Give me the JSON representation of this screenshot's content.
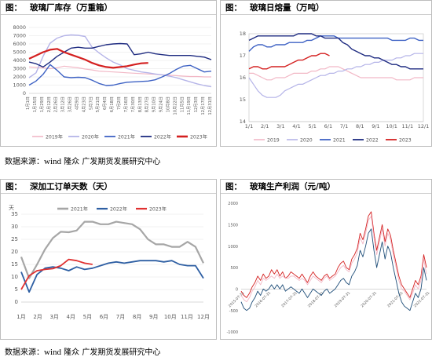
{
  "source": {
    "prefix": "数据来源：",
    "wind": "wind",
    "rest": " 隆众 广发期货发展研究中心"
  },
  "panels": {
    "p1": {
      "label": "图：",
      "title": "玻璃厂库存（万重箱）"
    },
    "p2": {
      "label": "图：",
      "title": "玻璃日熔量（万吨）"
    },
    "p3": {
      "label": "图：",
      "title": "深加工订单天数（天）"
    },
    "p4": {
      "label": "图：",
      "title": "玻璃生产利润（元/吨）"
    }
  },
  "chart_data": [
    {
      "id": "p1",
      "type": "line",
      "title": "玻璃厂库存（万重箱）",
      "ylim": [
        0,
        8000
      ],
      "y_ticks": [
        "0",
        "1000",
        "2000",
        "3000",
        "4000",
        "5000",
        "6000",
        "7000",
        "8000"
      ],
      "x_ticks": [
        "1月1日",
        "1月15日",
        "1月29日",
        "2月12日",
        "2月26日",
        "3月12日",
        "3月26日",
        "4月9日",
        "4月23日",
        "5月7日",
        "5月21日",
        "6月4日",
        "6月18日",
        "7月2日",
        "7月16日",
        "7月30日",
        "8月13日",
        "8月27日",
        "9月10日",
        "9月24日",
        "10月8日",
        "10月22日",
        "11月5日",
        "11月19日",
        "12月3日",
        "12月17日",
        "12月31日"
      ],
      "legend": "bottom",
      "series": [
        {
          "name": "2019年",
          "color": "#f2b8c6",
          "width": 1.2,
          "values": [
            3200,
            3150,
            3100,
            3000,
            3100,
            3300,
            3200,
            3100,
            2950,
            2850,
            2700,
            2650,
            2600,
            2550,
            2500,
            2450,
            2400,
            2350,
            2300,
            2250,
            2200,
            2150,
            2100,
            2050,
            2050,
            2000,
            2000
          ]
        },
        {
          "name": "2020年",
          "color": "#b5b4e8",
          "width": 1.4,
          "values": [
            1900,
            2500,
            4500,
            6100,
            6700,
            7000,
            7100,
            7050,
            6900,
            5600,
            4900,
            4300,
            3800,
            3450,
            3000,
            2800,
            2600,
            2500,
            2350,
            2250,
            2100,
            1900,
            1650,
            1400,
            1150,
            950,
            800
          ]
        },
        {
          "name": "2021年",
          "color": "#3e62c4",
          "width": 1.4,
          "values": [
            1000,
            1500,
            2300,
            3500,
            2800,
            2000,
            1900,
            1950,
            1900,
            1600,
            1200,
            950,
            1000,
            1200,
            1350,
            1400,
            1450,
            1500,
            1650,
            2000,
            2400,
            2900,
            3300,
            3400,
            3000,
            2600,
            2700
          ]
        },
        {
          "name": "2022年",
          "color": "#1e2b80",
          "width": 1.4,
          "values": [
            3800,
            3600,
            3200,
            3800,
            4500,
            5000,
            5500,
            5600,
            5500,
            5500,
            5700,
            5900,
            6000,
            6050,
            6000,
            4700,
            4800,
            5000,
            4800,
            4700,
            4600,
            4600,
            4600,
            4600,
            4500,
            4400,
            4100
          ]
        },
        {
          "name": "2023年",
          "color": "#d42020",
          "width": 2.2,
          "values": [
            4200,
            4600,
            5000,
            5300,
            5400,
            5000,
            4700,
            4400,
            4100,
            3700,
            3400,
            3200,
            3100,
            3200,
            3300,
            3500,
            3650,
            3700
          ]
        }
      ]
    },
    {
      "id": "p2",
      "type": "line",
      "title": "玻璃日熔量（万吨）",
      "ylim": [
        14,
        18
      ],
      "y_ticks": [
        "14",
        "15",
        "16",
        "17",
        "18"
      ],
      "x_ticks": [
        "1/1",
        "2/1",
        "3/1",
        "4/1",
        "5/1",
        "6/1",
        "7/1",
        "8/1",
        "9/1",
        "10/1",
        "11/1",
        "12/1"
      ],
      "legend": "bottom",
      "series": [
        {
          "name": "2019",
          "color": "#f2b8c6",
          "width": 1.2,
          "values": [
            16.2,
            16.2,
            16.1,
            16.0,
            15.9,
            15.9,
            16.0,
            16.0,
            16.0,
            16.1,
            16.2,
            16.2,
            16.2,
            16.2,
            16.3,
            16.3,
            16.4,
            16.4,
            16.5,
            16.5,
            16.5,
            16.4,
            16.3,
            16.2,
            16.1,
            16.0,
            16.0,
            16.0,
            16.0,
            16.0,
            16.0,
            16.0,
            16.0,
            15.9,
            15.9,
            15.9,
            15.9,
            16.0,
            16.0,
            16.0
          ]
        },
        {
          "name": "2020",
          "color": "#b5b4e8",
          "width": 1.2,
          "values": [
            16.0,
            15.7,
            15.4,
            15.2,
            15.1,
            15.1,
            15.1,
            15.2,
            15.4,
            15.5,
            15.6,
            15.7,
            15.7,
            15.8,
            15.9,
            16.0,
            16.1,
            16.1,
            16.2,
            16.2,
            16.3,
            16.3,
            16.4,
            16.4,
            16.5,
            16.5,
            16.6,
            16.6,
            16.7,
            16.7,
            16.8,
            16.8,
            16.8,
            16.9,
            16.9,
            17.0,
            17.0,
            17.1,
            17.1,
            17.1
          ]
        },
        {
          "name": "2021",
          "color": "#3e62c4",
          "width": 1.4,
          "values": [
            17.2,
            17.4,
            17.5,
            17.5,
            17.4,
            17.4,
            17.5,
            17.5,
            17.5,
            17.6,
            17.6,
            17.6,
            17.6,
            17.7,
            17.7,
            17.8,
            17.9,
            17.9,
            17.9,
            17.9,
            17.8,
            17.8,
            17.8,
            17.8,
            17.8,
            17.8,
            17.8,
            17.8,
            17.8,
            17.8,
            17.8,
            17.8,
            17.7,
            17.7,
            17.7,
            17.7,
            17.8,
            17.8,
            17.7,
            17.7
          ]
        },
        {
          "name": "2022",
          "color": "#1e2b80",
          "width": 1.4,
          "values": [
            17.7,
            17.8,
            17.9,
            17.9,
            17.9,
            17.9,
            17.9,
            17.9,
            17.9,
            17.9,
            17.9,
            18.0,
            18.0,
            18.0,
            18.0,
            17.9,
            17.9,
            17.8,
            17.8,
            17.8,
            17.8,
            17.6,
            17.5,
            17.3,
            17.2,
            17.1,
            17.0,
            17.0,
            16.9,
            16.9,
            16.8,
            16.7,
            16.6,
            16.6,
            16.5,
            16.5,
            16.4,
            16.4,
            16.4,
            16.4
          ]
        },
        {
          "name": "2023",
          "color": "#d42020",
          "width": 1.4,
          "values": [
            16.4,
            16.5,
            16.5,
            16.4,
            16.4,
            16.5,
            16.5,
            16.5,
            16.5,
            16.6,
            16.7,
            16.8,
            16.8,
            16.9,
            17.0,
            17.0,
            17.1,
            17.1,
            17.0
          ]
        }
      ]
    },
    {
      "id": "p3",
      "type": "line",
      "title": "深加工订单天数（天）",
      "ylabel": "天",
      "ylim": [
        0,
        35
      ],
      "y_ticks": [
        "0",
        "5",
        "10",
        "15",
        "20",
        "25",
        "30",
        "35"
      ],
      "x_ticks": [
        "1月",
        "2月",
        "3月",
        "4月",
        "5月",
        "6月",
        "7月",
        "8月",
        "9月",
        "10月",
        "11月",
        "12月"
      ],
      "legend": "top",
      "series": [
        {
          "name": "2021年",
          "color": "#a6a6a6",
          "width": 2.2,
          "values": [
            18,
            9.5,
            15,
            21,
            25.5,
            28,
            27.8,
            28.5,
            32,
            32,
            31,
            31,
            32,
            31.5,
            31,
            29,
            25,
            23,
            23,
            22,
            22,
            24,
            22,
            15.5
          ]
        },
        {
          "name": "2022年",
          "color": "#2e5fa3",
          "width": 1.8,
          "values": [
            12,
            4,
            11,
            13.5,
            14,
            13.5,
            12.5,
            14,
            13,
            13.5,
            14.5,
            15.5,
            16,
            15.5,
            16,
            16.5,
            16.5,
            16.5,
            16,
            16.5,
            15,
            14.5,
            14.5,
            9.5
          ]
        },
        {
          "name": "2023年",
          "color": "#e03131",
          "width": 1.8,
          "values": [
            5,
            10.5,
            12.5,
            13,
            13.3,
            14.5,
            17,
            16.5,
            15.5,
            15
          ]
        }
      ]
    },
    {
      "id": "p4",
      "type": "line",
      "title": "玻璃生产利润（元/吨）",
      "ylim": [
        -1000,
        2000
      ],
      "y_ticks": [
        "-1000",
        "-500",
        "0",
        "500",
        "1000",
        "1500",
        "2000"
      ],
      "x_ticks": [
        "2015-07-31",
        "2016-07-31",
        "2017-07-31",
        "2018-07-31",
        "2019-07-31",
        "2020-07-31",
        "2021-07-31",
        "2022-07-31"
      ],
      "series": [
        {
          "name": "",
          "color": "#d42020",
          "width": 0.9,
          "values": [
            -50,
            -150,
            -200,
            -100,
            50,
            150,
            300,
            200,
            350,
            250,
            300,
            450,
            350,
            450,
            300,
            400,
            250,
            300,
            400,
            350,
            300,
            250,
            350,
            250,
            150,
            300,
            400,
            300,
            250,
            200,
            300,
            350,
            250,
            300,
            350,
            500,
            600,
            650,
            500,
            450,
            700,
            800,
            950,
            1300,
            1150,
            1400,
            1700,
            1800,
            1300,
            900,
            1200,
            1500,
            1100,
            1400,
            1250,
            900,
            600,
            300,
            100,
            0,
            -100,
            -200,
            0,
            200,
            100,
            300,
            800,
            500
          ]
        },
        {
          "name": "",
          "color": "#f2b8c6",
          "width": 0.9,
          "values": [
            -150,
            -250,
            -300,
            -200,
            -50,
            50,
            200,
            100,
            250,
            200,
            250,
            300,
            250,
            350,
            250,
            300,
            250,
            250,
            300,
            300,
            250,
            200,
            250,
            200,
            100,
            200,
            300,
            250,
            200,
            150,
            250,
            300,
            200,
            250,
            300,
            400,
            500,
            550,
            450,
            400,
            600,
            700,
            850,
            1200,
            1050,
            1300,
            1600,
            1700,
            1200,
            800,
            1100,
            1400,
            1000,
            1300,
            1150,
            800,
            500,
            200,
            0,
            -50,
            -150,
            -250,
            -100,
            100,
            0,
            200,
            700,
            350
          ]
        },
        {
          "name": "",
          "color": "#1f4e79",
          "width": 0.9,
          "values": [
            -300,
            -450,
            -500,
            -450,
            -300,
            -200,
            -50,
            -150,
            0,
            -50,
            0,
            100,
            0,
            100,
            0,
            100,
            -50,
            0,
            50,
            0,
            -50,
            -100,
            0,
            -100,
            -200,
            -100,
            0,
            -50,
            -100,
            -150,
            -50,
            0,
            -100,
            -50,
            0,
            100,
            200,
            250,
            150,
            100,
            300,
            400,
            550,
            900,
            750,
            1000,
            1300,
            1400,
            900,
            500,
            800,
            1100,
            700,
            1000,
            850,
            500,
            200,
            -100,
            -300,
            -400,
            -450,
            -500,
            -300,
            -100,
            -200,
            0,
            500,
            200
          ]
        }
      ]
    }
  ]
}
